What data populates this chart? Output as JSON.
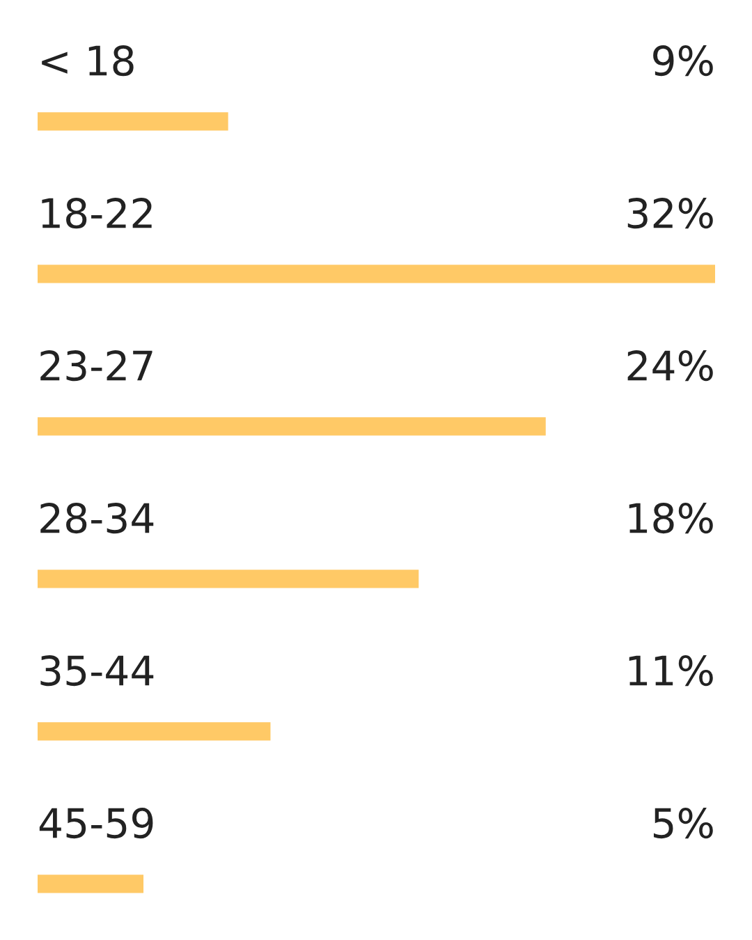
{
  "chart_data": {
    "type": "bar",
    "orientation": "horizontal",
    "categories": [
      "< 18",
      "18-22",
      "23-27",
      "28-34",
      "35-44",
      "45-59"
    ],
    "values": [
      9,
      32,
      24,
      18,
      11,
      5
    ],
    "value_labels": [
      "9%",
      "32%",
      "24%",
      "18%",
      "11%",
      "5%"
    ],
    "color": "#ffc966"
  }
}
